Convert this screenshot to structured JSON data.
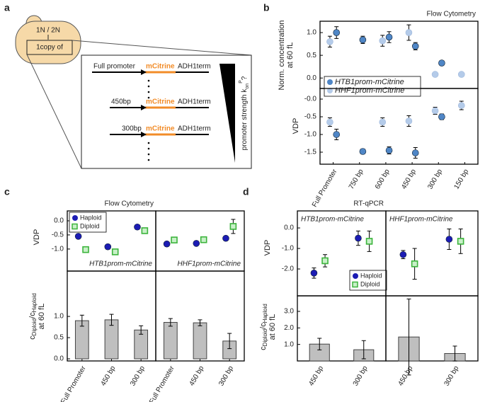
{
  "diagram": {
    "label": "a",
    "cell_top": "1N / 2N",
    "cell_box": "1copy of",
    "rows": [
      {
        "left": "Full promoter",
        "mid": "mCitrine",
        "right": "ADH1term"
      },
      {
        "left": "450bp",
        "mid": "mCitrine",
        "right": "ADH1term"
      },
      {
        "left": "300bp",
        "mid": "mCitrine",
        "right": "ADH1term"
      }
    ],
    "strength": "promoter strength",
    "k": "k",
    "k_sup": "P",
    "k_sub": "on",
    "k_q": "?"
  },
  "chart_data": [
    {
      "type": "errorbar",
      "panel": "b",
      "title": "Flow Cytometry",
      "ylabel": [
        "Norm. concentration",
        "at 60 fL"
      ],
      "ylim": [
        -0.23,
        1.25
      ],
      "yticks": [
        {
          "value": 0,
          "label": "0.0"
        },
        {
          "value": 0.5,
          "label": "0.5"
        },
        {
          "value": 1,
          "label": "1.0"
        }
      ],
      "legend": "lower left",
      "series": [
        {
          "name": "HTB1prom-mCitrine",
          "color": "#4f86c6",
          "marker": "circle",
          "values": [
            1.0,
            0.84,
            0.9,
            0.7,
            0.33,
            null
          ],
          "errors": [
            0.13,
            0.08,
            0.12,
            0.08,
            0.04,
            null
          ]
        },
        {
          "name": "HHF1prom-mCitrine",
          "color": "#b4cbe9",
          "marker": "circle",
          "values": [
            0.8,
            null,
            0.82,
            1.0,
            0.08,
            0.08
          ],
          "errors": [
            0.12,
            null,
            0.12,
            0.17,
            0.03,
            0.03
          ]
        }
      ]
    },
    {
      "type": "errorbar",
      "ylabel": [
        "VDP"
      ],
      "categories": [
        "Full Promoter",
        "750 bp",
        "600 bp",
        "450 bp",
        "300 bp",
        "150 bp"
      ],
      "ylim": [
        -1.84,
        0.3
      ],
      "yticks": [
        {
          "value": -1.5,
          "label": "-1.5"
        },
        {
          "value": -1,
          "label": "-1.0"
        },
        {
          "value": -0.5,
          "label": "-0.5"
        },
        {
          "value": 0,
          "label": "-0.0"
        }
      ],
      "series": [
        {
          "color": "#4f86c6",
          "marker": "circle",
          "values": [
            -1.0,
            -1.48,
            -1.45,
            -1.52,
            -0.5,
            null
          ],
          "errors": [
            0.15,
            0.07,
            0.1,
            0.15,
            0.08,
            null
          ]
        },
        {
          "color": "#b4cbe9",
          "marker": "circle",
          "values": [
            -0.65,
            null,
            -0.65,
            -0.62,
            -0.33,
            -0.18
          ],
          "errors": [
            0.12,
            null,
            0.12,
            0.15,
            0.1,
            0.12
          ]
        }
      ]
    },
    {
      "type": "errorbar",
      "panel": "c",
      "title": "Flow Cytometry",
      "ylabel": [
        "VDP"
      ],
      "subtitle": "HTB1prom-mCitrine",
      "ylim": [
        -1.78,
        0.35
      ],
      "yticks": [
        {
          "value": -1,
          "label": "-1.0"
        },
        {
          "value": -0.5,
          "label": "-0.5"
        },
        {
          "value": 0,
          "label": "0.0"
        }
      ],
      "legend": "upper left",
      "series": [
        {
          "name": "Haploid",
          "color": "#1c1cb4",
          "marker": "circle",
          "values": [
            -0.55,
            -0.92,
            -0.22
          ],
          "errors": [
            0.08,
            0.08,
            0.08
          ]
        },
        {
          "name": "Diploid",
          "color": "#3cb43c",
          "marker": "square",
          "values": [
            -1.02,
            -1.1,
            -0.35
          ],
          "errors": [
            0.08,
            0.05,
            0.08
          ]
        }
      ]
    },
    {
      "type": "errorbar",
      "subtitle": "HHF1prom-mCitrine",
      "ylim": [
        -1.78,
        0.35
      ],
      "series": [
        {
          "color": "#1c1cb4",
          "marker": "circle",
          "values": [
            -0.82,
            -0.8,
            -0.62
          ],
          "errors": [
            0.07,
            0.05,
            0.08
          ]
        },
        {
          "color": "#3cb43c",
          "marker": "square",
          "values": [
            -0.68,
            -0.67,
            -0.2
          ],
          "errors": [
            0.05,
            0.04,
            0.25
          ]
        }
      ]
    },
    {
      "type": "bar",
      "ylabel": {
        "c1": "c",
        "sub1": "Diploid",
        "c2": "/c",
        "sub2": "Haploid",
        "line2": "at 60 fL"
      },
      "categories": [
        "Full Promoter",
        "450 bp",
        "300 bp"
      ],
      "color": "#bfbfbf",
      "ylim": [
        -0.05,
        2.07
      ],
      "yticks": [
        {
          "value": 0,
          "label": "0.0"
        },
        {
          "value": 0.5,
          "label": "0.5"
        },
        {
          "value": 1,
          "label": "1.0"
        }
      ],
      "values": [
        0.9,
        0.92,
        0.68
      ],
      "errors": [
        0.13,
        0.13,
        0.1
      ]
    },
    {
      "type": "bar",
      "categories": [
        "Full Promoter",
        "450 bp",
        "300 bp"
      ],
      "color": "#bfbfbf",
      "ylim": [
        -0.05,
        2.07
      ],
      "values": [
        0.86,
        0.85,
        0.42
      ],
      "errors": [
        0.09,
        0.07,
        0.18
      ]
    },
    {
      "type": "errorbar",
      "panel": "d",
      "title": "RT-qPCR",
      "ylabel": [
        "VDP"
      ],
      "subtitle": "HTB1prom-mCitrine",
      "ylim": [
        -3.31,
        0.83
      ],
      "yticks": [
        {
          "value": 0,
          "label": "0.0"
        },
        {
          "value": -1,
          "label": "-1.0"
        },
        {
          "value": -2,
          "label": "-2.0"
        }
      ],
      "legend": "lower right",
      "series": [
        {
          "name": "Haploid",
          "color": "#1c1cb4",
          "marker": "circle",
          "values": [
            -2.2,
            -0.5
          ],
          "errors": [
            0.25,
            0.35
          ]
        },
        {
          "name": "Diploid",
          "color": "#3cb43c",
          "marker": "square",
          "values": [
            -1.6,
            -0.65
          ],
          "errors": [
            0.3,
            0.5
          ]
        }
      ]
    },
    {
      "type": "errorbar",
      "subtitle": "HHF1prom-mCitrine",
      "ylim": [
        -3.31,
        0.83
      ],
      "series": [
        {
          "color": "#1c1cb4",
          "marker": "circle",
          "values": [
            -1.3,
            -0.55
          ],
          "errors": [
            0.2,
            0.5
          ]
        },
        {
          "color": "#3cb43c",
          "marker": "square",
          "values": [
            -1.75,
            -0.65
          ],
          "errors": [
            0.75,
            0.6
          ]
        }
      ]
    },
    {
      "type": "bar",
      "ylabel": {
        "c1": "c",
        "sub1": "Diploid",
        "c2": "/c",
        "sub2": "Haploid",
        "line2": "at 60 fL"
      },
      "categories": [
        "450 bp",
        "300 bp"
      ],
      "color": "#bfbfbf",
      "ylim": [
        0,
        3.94
      ],
      "yticks": [
        {
          "value": 1,
          "label": "1.0"
        },
        {
          "value": 2,
          "label": "2.0"
        },
        {
          "value": 3,
          "label": "3.0"
        }
      ],
      "values": [
        1.02,
        0.68
      ],
      "errors": [
        0.35,
        0.55
      ]
    },
    {
      "type": "bar",
      "categories": [
        "450 bp",
        "300 bp"
      ],
      "color": "#bfbfbf",
      "ylim": [
        0,
        3.94
      ],
      "values": [
        1.45,
        0.45
      ],
      "errors": [
        2.3,
        0.45
      ]
    }
  ]
}
